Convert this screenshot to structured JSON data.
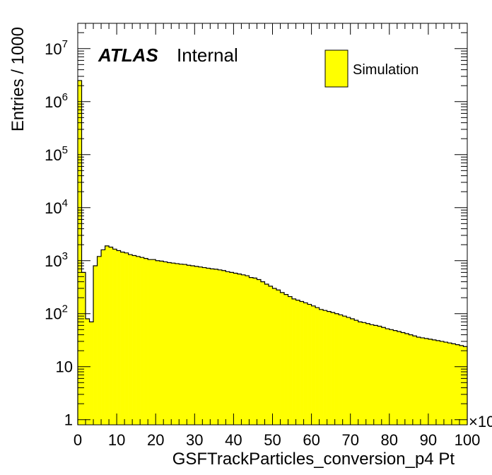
{
  "chart_data": {
    "type": "bar",
    "title": "",
    "xlabel": "GSFTrackParticles_conversion_p4 Pt",
    "ylabel": "Entries / 1000",
    "x_multiplier_label": "×10",
    "xlim": [
      0,
      100
    ],
    "ylim": [
      0.8,
      30000000
    ],
    "log_y": true,
    "grid": false,
    "legend_position": "top-right",
    "atlas_label": "ATLAS",
    "atlas_status": "Internal",
    "x_tick_labels": [
      "0",
      "10",
      "20",
      "30",
      "40",
      "50",
      "60",
      "70",
      "80",
      "90",
      "100"
    ],
    "y_tick_labels": [
      {
        "base": "1",
        "exp": ""
      },
      {
        "base": "10",
        "exp": ""
      },
      {
        "base": "10",
        "exp": "2"
      },
      {
        "base": "10",
        "exp": "3"
      },
      {
        "base": "10",
        "exp": "4"
      },
      {
        "base": "10",
        "exp": "5"
      },
      {
        "base": "10",
        "exp": "6"
      },
      {
        "base": "10",
        "exp": "7"
      }
    ],
    "series": [
      {
        "name": "Simulation",
        "color": "#ffff00",
        "edge_color": "#000000",
        "bin_width": 1,
        "bin_start": 0,
        "values": [
          2500000,
          600,
          80,
          70,
          800,
          1200,
          1600,
          1900,
          1800,
          1650,
          1550,
          1450,
          1400,
          1300,
          1250,
          1200,
          1150,
          1100,
          1050,
          1050,
          1000,
          980,
          950,
          920,
          900,
          880,
          860,
          850,
          820,
          800,
          780,
          760,
          740,
          720,
          700,
          690,
          670,
          650,
          620,
          600,
          580,
          560,
          540,
          520,
          480,
          470,
          440,
          400,
          360,
          330,
          300,
          280,
          250,
          230,
          210,
          190,
          180,
          170,
          160,
          150,
          140,
          130,
          120,
          115,
          110,
          105,
          100,
          95,
          90,
          85,
          80,
          75,
          70,
          68,
          65,
          62,
          60,
          58,
          55,
          52,
          50,
          48,
          46,
          44,
          42,
          40,
          38,
          36,
          35,
          34,
          33,
          32,
          31,
          30,
          29,
          28,
          27,
          26,
          25,
          24
        ]
      }
    ]
  }
}
